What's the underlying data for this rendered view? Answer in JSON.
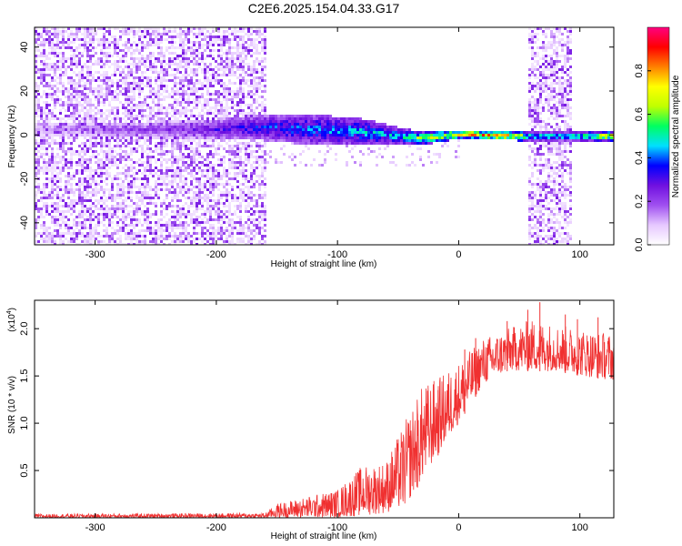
{
  "figure": {
    "title": "C2E6.2025.154.04.33.G17"
  },
  "chart_data": [
    {
      "type": "heatmap",
      "title": "C2E6.2025.154.04.33.G17",
      "xlabel": "Height of straight line (km)",
      "ylabel": "Frequency (Hz)",
      "xlim": [
        -350,
        128
      ],
      "ylim": [
        -50,
        49
      ],
      "xticks": [
        -300,
        -200,
        -100,
        0,
        100
      ],
      "xtick_labels": [
        "-300",
        "-200",
        "-100",
        "0",
        "100"
      ],
      "yticks": [
        -40,
        -20,
        0,
        20,
        40
      ],
      "ytick_labels": [
        "-40",
        "-20",
        "0",
        "20",
        "40"
      ],
      "colorbar": {
        "label": "Normalized spectral amplitude",
        "range": [
          0,
          1
        ],
        "ticks": [
          0.0,
          0.2,
          0.4,
          0.6,
          0.8
        ],
        "tick_labels": [
          "0.0",
          "0.2",
          "0.4",
          "0.6",
          "0.8"
        ],
        "colormap": [
          "#ffffff",
          "#e6c8ff",
          "#a050f0",
          "#7010e0",
          "#0000ff",
          "#00e0ff",
          "#00ff60",
          "#c0ff00",
          "#ffff00",
          "#ff8000",
          "#ff0000",
          "#ff0080"
        ]
      },
      "noise_regions": [
        {
          "x_from": -350,
          "x_to": -160,
          "y_from": -50,
          "y_to": 49
        },
        {
          "x_from": 56,
          "x_to": 92,
          "y_from": -50,
          "y_to": 49
        }
      ],
      "signal_ridge": [
        {
          "x": -350,
          "center": 3,
          "spread": 3,
          "amplitude": 0.15
        },
        {
          "x": -220,
          "center": 3,
          "spread": 4,
          "amplitude": 0.3
        },
        {
          "x": -160,
          "center": 4,
          "spread": 6,
          "amplitude": 0.45
        },
        {
          "x": -120,
          "center": 3,
          "spread": 7,
          "amplitude": 0.5
        },
        {
          "x": -80,
          "center": 2,
          "spread": 6,
          "amplitude": 0.55
        },
        {
          "x": -50,
          "center": 0,
          "spread": 4,
          "amplitude": 0.55
        },
        {
          "x": -30,
          "center": -1,
          "spread": 3,
          "amplitude": 0.75
        },
        {
          "x": 0,
          "center": 1,
          "spread": 2,
          "amplitude": 0.95
        },
        {
          "x": 50,
          "center": 0,
          "spread": 2,
          "amplitude": 0.95
        },
        {
          "x": 56,
          "center": 0,
          "spread": 2,
          "amplitude": 0.6
        },
        {
          "x": 92,
          "center": 0,
          "spread": 2,
          "amplitude": 0.6
        },
        {
          "x": 128,
          "center": 0,
          "spread": 2,
          "amplitude": 0.95
        }
      ]
    },
    {
      "type": "line",
      "xlabel": "Height of straight line (km)",
      "ylabel": "SNR (10 * v/v)",
      "y_multiplier_label": "(x10",
      "y_multiplier_exp": "4",
      "xlim": [
        -350,
        128
      ],
      "ylim": [
        0,
        2.3
      ],
      "xticks": [
        -300,
        -200,
        -100,
        0,
        100
      ],
      "xtick_labels": [
        "-300",
        "-200",
        "-100",
        "0",
        "100"
      ],
      "yticks": [
        0.5,
        1.0,
        1.5,
        2.0
      ],
      "ytick_labels": [
        "0.5",
        "1.0",
        "1.5",
        "2.0"
      ],
      "color": "#f03030",
      "envelope": [
        {
          "x": -350,
          "low": 0.0,
          "high": 0.04
        },
        {
          "x": -160,
          "low": 0.0,
          "high": 0.05
        },
        {
          "x": -150,
          "low": 0.0,
          "high": 0.15
        },
        {
          "x": -100,
          "low": 0.0,
          "high": 0.3
        },
        {
          "x": -80,
          "low": 0.02,
          "high": 0.55
        },
        {
          "x": -60,
          "low": 0.05,
          "high": 0.6
        },
        {
          "x": -45,
          "low": 0.1,
          "high": 1.0
        },
        {
          "x": -30,
          "low": 0.4,
          "high": 1.4
        },
        {
          "x": -15,
          "low": 0.7,
          "high": 1.5
        },
        {
          "x": 0,
          "low": 1.0,
          "high": 1.65
        },
        {
          "x": 20,
          "low": 1.4,
          "high": 1.9
        },
        {
          "x": 40,
          "low": 1.55,
          "high": 2.0
        },
        {
          "x": 60,
          "low": 1.55,
          "high": 2.1
        },
        {
          "x": 80,
          "low": 1.55,
          "high": 2.05
        },
        {
          "x": 100,
          "low": 1.5,
          "high": 2.0
        },
        {
          "x": 128,
          "low": 1.45,
          "high": 1.95
        }
      ],
      "spikes": [
        {
          "x": -34,
          "y": 1.1
        },
        {
          "x": -17,
          "y": 1.35
        },
        {
          "x": 5,
          "y": 1.78
        },
        {
          "x": 14,
          "y": 1.9
        },
        {
          "x": 40,
          "y": 2.08
        },
        {
          "x": 57,
          "y": 2.2
        },
        {
          "x": 67,
          "y": 2.28
        },
        {
          "x": 88,
          "y": 2.15
        },
        {
          "x": 98,
          "y": 2.1
        },
        {
          "x": 115,
          "y": 2.12
        }
      ]
    }
  ]
}
